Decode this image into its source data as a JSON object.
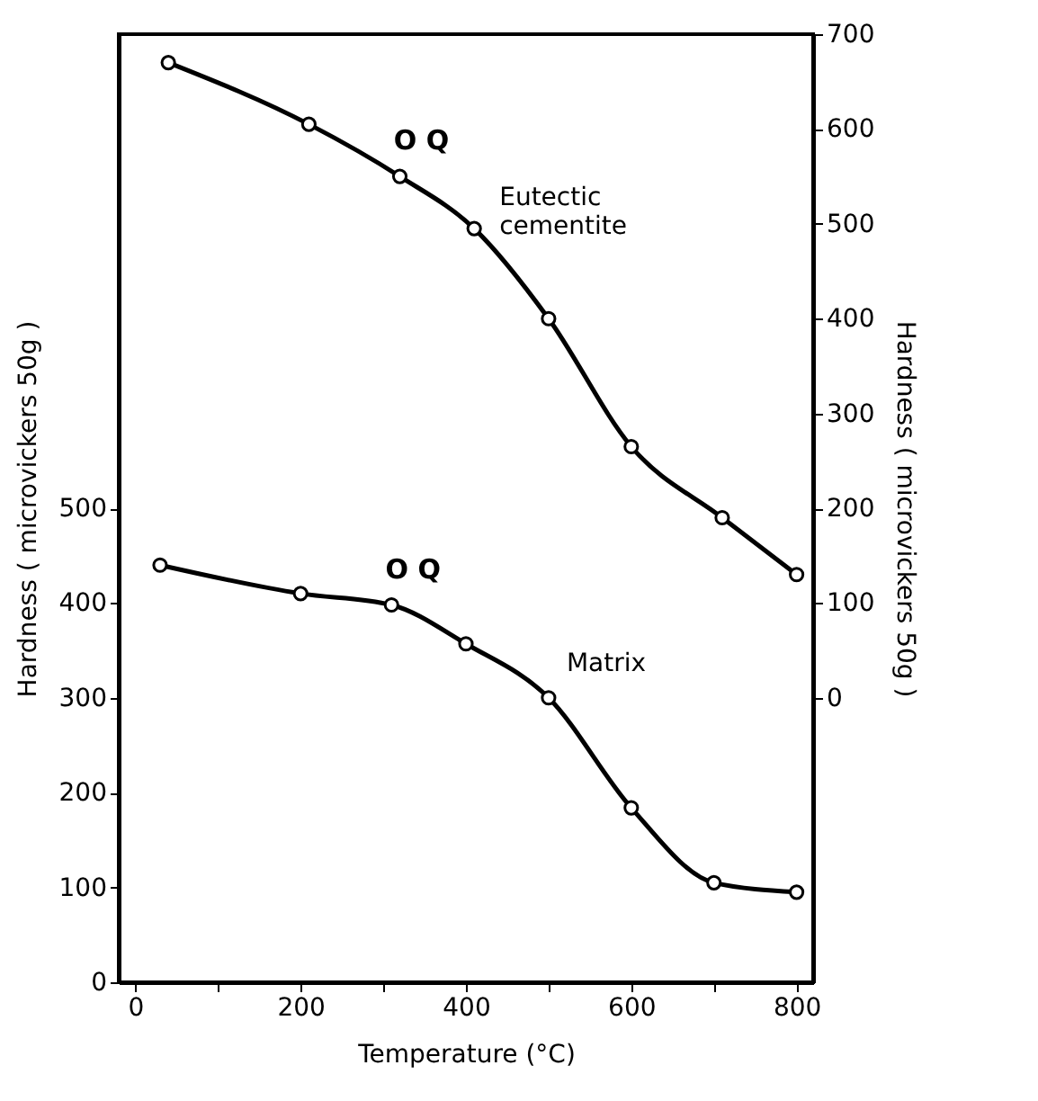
{
  "chart_data": {
    "type": "line",
    "xlabel": "Temperature (°C)",
    "ylabel": "Hardness ( microvickers 50g )",
    "y2label": "Hardness ( microvickers 50g )",
    "xlim": [
      -20,
      820
    ],
    "xticks": [
      0,
      {
        "value": 100,
        "label": null
      },
      200,
      {
        "value": 300,
        "label": null
      },
      400,
      {
        "value": 500,
        "label": null
      },
      600,
      {
        "value": 700,
        "label": null
      },
      800
    ],
    "ylim": [
      0,
      1000
    ],
    "yticks": [
      0,
      100,
      200,
      300,
      400,
      500
    ],
    "y2lim": [
      -300,
      700
    ],
    "y2ticks": [
      0,
      100,
      200,
      300,
      400,
      500,
      600,
      700
    ],
    "marker": "circle",
    "line_style": "solid",
    "grid": false,
    "series": [
      {
        "name": "Matrix",
        "color": "#000000",
        "x": [
          30,
          200,
          310,
          400,
          500,
          600,
          700,
          800
        ],
        "values": [
          440,
          410,
          398,
          357,
          300,
          184,
          105,
          95
        ]
      },
      {
        "name": "Eutectic cementite",
        "color": "#000000",
        "axis": "y2",
        "x": [
          40,
          210,
          320,
          410,
          500,
          600,
          710,
          800
        ],
        "values": [
          670,
          605,
          550,
          495,
          400,
          265,
          190,
          130
        ]
      }
    ],
    "annotations": [
      "O Q",
      "O Q"
    ]
  }
}
